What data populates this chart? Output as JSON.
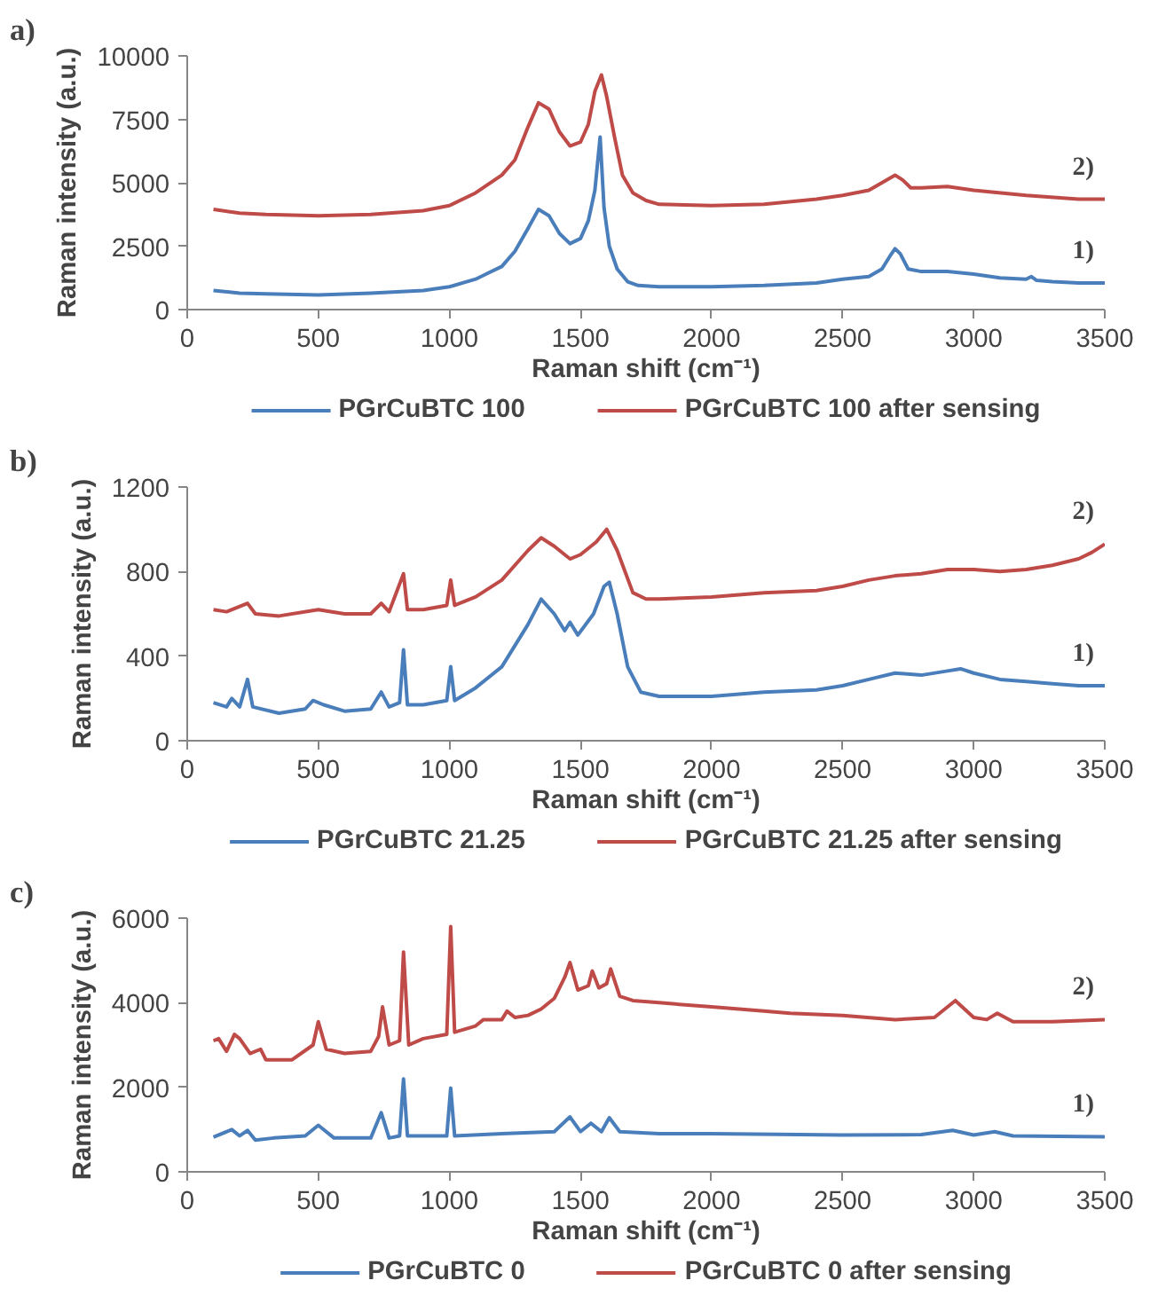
{
  "chart_data": [
    {
      "type": "line",
      "title": "a)",
      "xlabel": "Raman shift (cm⁻¹)",
      "ylabel": "Raman intensity (a.u.)",
      "xlim": [
        0,
        3500
      ],
      "xticks": [
        0,
        500,
        1000,
        1500,
        2000,
        2500,
        3000,
        3500
      ],
      "ylim": [
        0,
        10000
      ],
      "yticks": [
        0,
        2500,
        5000,
        7500,
        10000
      ],
      "grid": false,
      "legend": "bottom",
      "marker": "none",
      "line_style": "solid",
      "x": [
        100,
        200,
        300,
        500,
        700,
        900,
        1000,
        1100,
        1150,
        1200,
        1250,
        1300,
        1340,
        1380,
        1420,
        1460,
        1500,
        1530,
        1555,
        1575,
        1590,
        1610,
        1640,
        1680,
        1720,
        1800,
        2000,
        2200,
        2400,
        2500,
        2600,
        2650,
        2680,
        2700,
        2720,
        2750,
        2800,
        2900,
        3000,
        3100,
        3200,
        3220,
        3240,
        3300,
        3400,
        3500
      ],
      "series": [
        {
          "name": "PGrCuBTC 100",
          "color": "#4a7ebb",
          "values": [
            750,
            650,
            620,
            580,
            650,
            750,
            900,
            1200,
            1450,
            1700,
            2300,
            3200,
            3950,
            3700,
            3000,
            2600,
            2800,
            3500,
            4700,
            6800,
            4000,
            2500,
            1600,
            1100,
            950,
            900,
            900,
            950,
            1050,
            1200,
            1300,
            1600,
            2100,
            2400,
            2200,
            1600,
            1500,
            1500,
            1400,
            1250,
            1200,
            1300,
            1150,
            1100,
            1050,
            1050
          ]
        },
        {
          "name": "PGrCuBTC 100 after sensing",
          "color": "#be4b48",
          "x": [
            100,
            200,
            300,
            500,
            700,
            900,
            1000,
            1100,
            1200,
            1250,
            1300,
            1340,
            1380,
            1420,
            1460,
            1500,
            1530,
            1555,
            1580,
            1600,
            1630,
            1660,
            1700,
            1750,
            1800,
            2000,
            2200,
            2400,
            2500,
            2600,
            2650,
            2700,
            2730,
            2760,
            2800,
            2900,
            3000,
            3200,
            3400,
            3500
          ],
          "values": [
            3950,
            3800,
            3750,
            3700,
            3750,
            3900,
            4100,
            4600,
            5300,
            5900,
            7200,
            8150,
            7900,
            7000,
            6450,
            6600,
            7300,
            8600,
            9250,
            8400,
            6800,
            5300,
            4600,
            4300,
            4150,
            4100,
            4150,
            4350,
            4500,
            4700,
            5000,
            5300,
            5100,
            4800,
            4800,
            4850,
            4700,
            4500,
            4350,
            4350
          ]
        }
      ],
      "annotations": [
        "2)",
        "1)"
      ]
    },
    {
      "type": "line",
      "title": "b)",
      "xlabel": "Raman shift (cm⁻¹)",
      "ylabel": "Raman intensity (a.u.)",
      "xlim": [
        0,
        3500
      ],
      "xticks": [
        0,
        500,
        1000,
        1500,
        2000,
        2500,
        3000,
        3500
      ],
      "ylim": [
        0,
        1200
      ],
      "yticks": [
        0,
        400,
        800,
        1200
      ],
      "grid": false,
      "legend": "bottom",
      "marker": "none",
      "line_style": "solid",
      "series": [
        {
          "name": "PGrCuBTC 21.25",
          "color": "#4a7ebb",
          "x": [
            100,
            150,
            170,
            200,
            230,
            250,
            350,
            450,
            480,
            520,
            600,
            700,
            740,
            770,
            810,
            825,
            840,
            900,
            990,
            1005,
            1020,
            1100,
            1200,
            1300,
            1350,
            1400,
            1440,
            1460,
            1490,
            1550,
            1590,
            1610,
            1640,
            1680,
            1730,
            1800,
            2000,
            2200,
            2400,
            2500,
            2600,
            2700,
            2800,
            2900,
            2950,
            3000,
            3100,
            3200,
            3300,
            3400,
            3500
          ],
          "values": [
            180,
            160,
            200,
            160,
            290,
            160,
            130,
            150,
            190,
            170,
            140,
            150,
            230,
            160,
            180,
            430,
            170,
            170,
            190,
            350,
            190,
            250,
            350,
            550,
            670,
            600,
            520,
            560,
            500,
            600,
            730,
            750,
            600,
            350,
            230,
            210,
            210,
            230,
            240,
            260,
            290,
            320,
            310,
            330,
            340,
            320,
            290,
            280,
            270,
            260,
            260
          ]
        },
        {
          "name": "PGrCuBTC 21.25 after sensing",
          "color": "#be4b48",
          "x": [
            100,
            150,
            230,
            260,
            350,
            500,
            600,
            700,
            740,
            770,
            825,
            840,
            900,
            990,
            1005,
            1020,
            1100,
            1200,
            1300,
            1350,
            1400,
            1460,
            1500,
            1560,
            1600,
            1640,
            1700,
            1750,
            1800,
            2000,
            2200,
            2400,
            2500,
            2600,
            2700,
            2800,
            2900,
            3000,
            3100,
            3200,
            3300,
            3400,
            3450,
            3500
          ],
          "values": [
            620,
            610,
            650,
            600,
            590,
            620,
            600,
            600,
            650,
            610,
            790,
            620,
            620,
            640,
            760,
            640,
            680,
            760,
            900,
            960,
            920,
            860,
            880,
            940,
            1000,
            900,
            700,
            670,
            670,
            680,
            700,
            710,
            730,
            760,
            780,
            790,
            810,
            810,
            800,
            810,
            830,
            860,
            890,
            930
          ]
        }
      ],
      "annotations": [
        "2)",
        "1)"
      ]
    },
    {
      "type": "line",
      "title": "c)",
      "xlabel": "Raman shift (cm⁻¹)",
      "ylabel": "Raman intensity (a.u.)",
      "xlim": [
        0,
        3500
      ],
      "xticks": [
        0,
        500,
        1000,
        1500,
        2000,
        2500,
        3000,
        3500
      ],
      "ylim": [
        0,
        6000
      ],
      "yticks": [
        0,
        2000,
        4000,
        6000
      ],
      "grid": false,
      "legend": "bottom",
      "marker": "none",
      "line_style": "solid",
      "series": [
        {
          "name": "PGrCuBTC 0",
          "color": "#4a7ebb",
          "x": [
            100,
            170,
            200,
            230,
            260,
            330,
            450,
            500,
            560,
            700,
            740,
            770,
            810,
            825,
            840,
            950,
            990,
            1005,
            1020,
            1200,
            1400,
            1460,
            1500,
            1540,
            1580,
            1610,
            1650,
            1800,
            2000,
            2500,
            2800,
            2920,
            3000,
            3080,
            3150,
            3500
          ],
          "values": [
            820,
            1000,
            850,
            980,
            750,
            800,
            850,
            1100,
            800,
            800,
            1400,
            800,
            850,
            2200,
            850,
            850,
            850,
            1980,
            850,
            900,
            950,
            1300,
            950,
            1150,
            950,
            1280,
            950,
            900,
            900,
            870,
            880,
            980,
            870,
            950,
            850,
            830
          ]
        },
        {
          "name": "PGrCuBTC 0 after sensing",
          "color": "#be4b48",
          "x": [
            100,
            120,
            150,
            180,
            200,
            240,
            280,
            300,
            400,
            480,
            500,
            530,
            600,
            700,
            730,
            745,
            770,
            810,
            825,
            845,
            900,
            990,
            1005,
            1020,
            1100,
            1130,
            1200,
            1220,
            1250,
            1300,
            1350,
            1400,
            1440,
            1460,
            1490,
            1530,
            1545,
            1570,
            1600,
            1615,
            1650,
            1700,
            1800,
            2000,
            2200,
            2300,
            2500,
            2700,
            2850,
            2930,
            3000,
            3050,
            3090,
            3150,
            3300,
            3500
          ],
          "values": [
            3100,
            3150,
            2850,
            3250,
            3150,
            2800,
            2900,
            2650,
            2650,
            3000,
            3550,
            2900,
            2800,
            2850,
            3200,
            3900,
            3000,
            3100,
            5200,
            3000,
            3150,
            3250,
            5800,
            3300,
            3450,
            3600,
            3600,
            3800,
            3650,
            3700,
            3850,
            4100,
            4600,
            4950,
            4300,
            4400,
            4750,
            4350,
            4450,
            4800,
            4150,
            4050,
            4000,
            3900,
            3800,
            3750,
            3700,
            3600,
            3650,
            4050,
            3650,
            3600,
            3750,
            3550,
            3550,
            3600
          ]
        }
      ],
      "annotations": [
        "2)",
        "1)"
      ]
    }
  ]
}
